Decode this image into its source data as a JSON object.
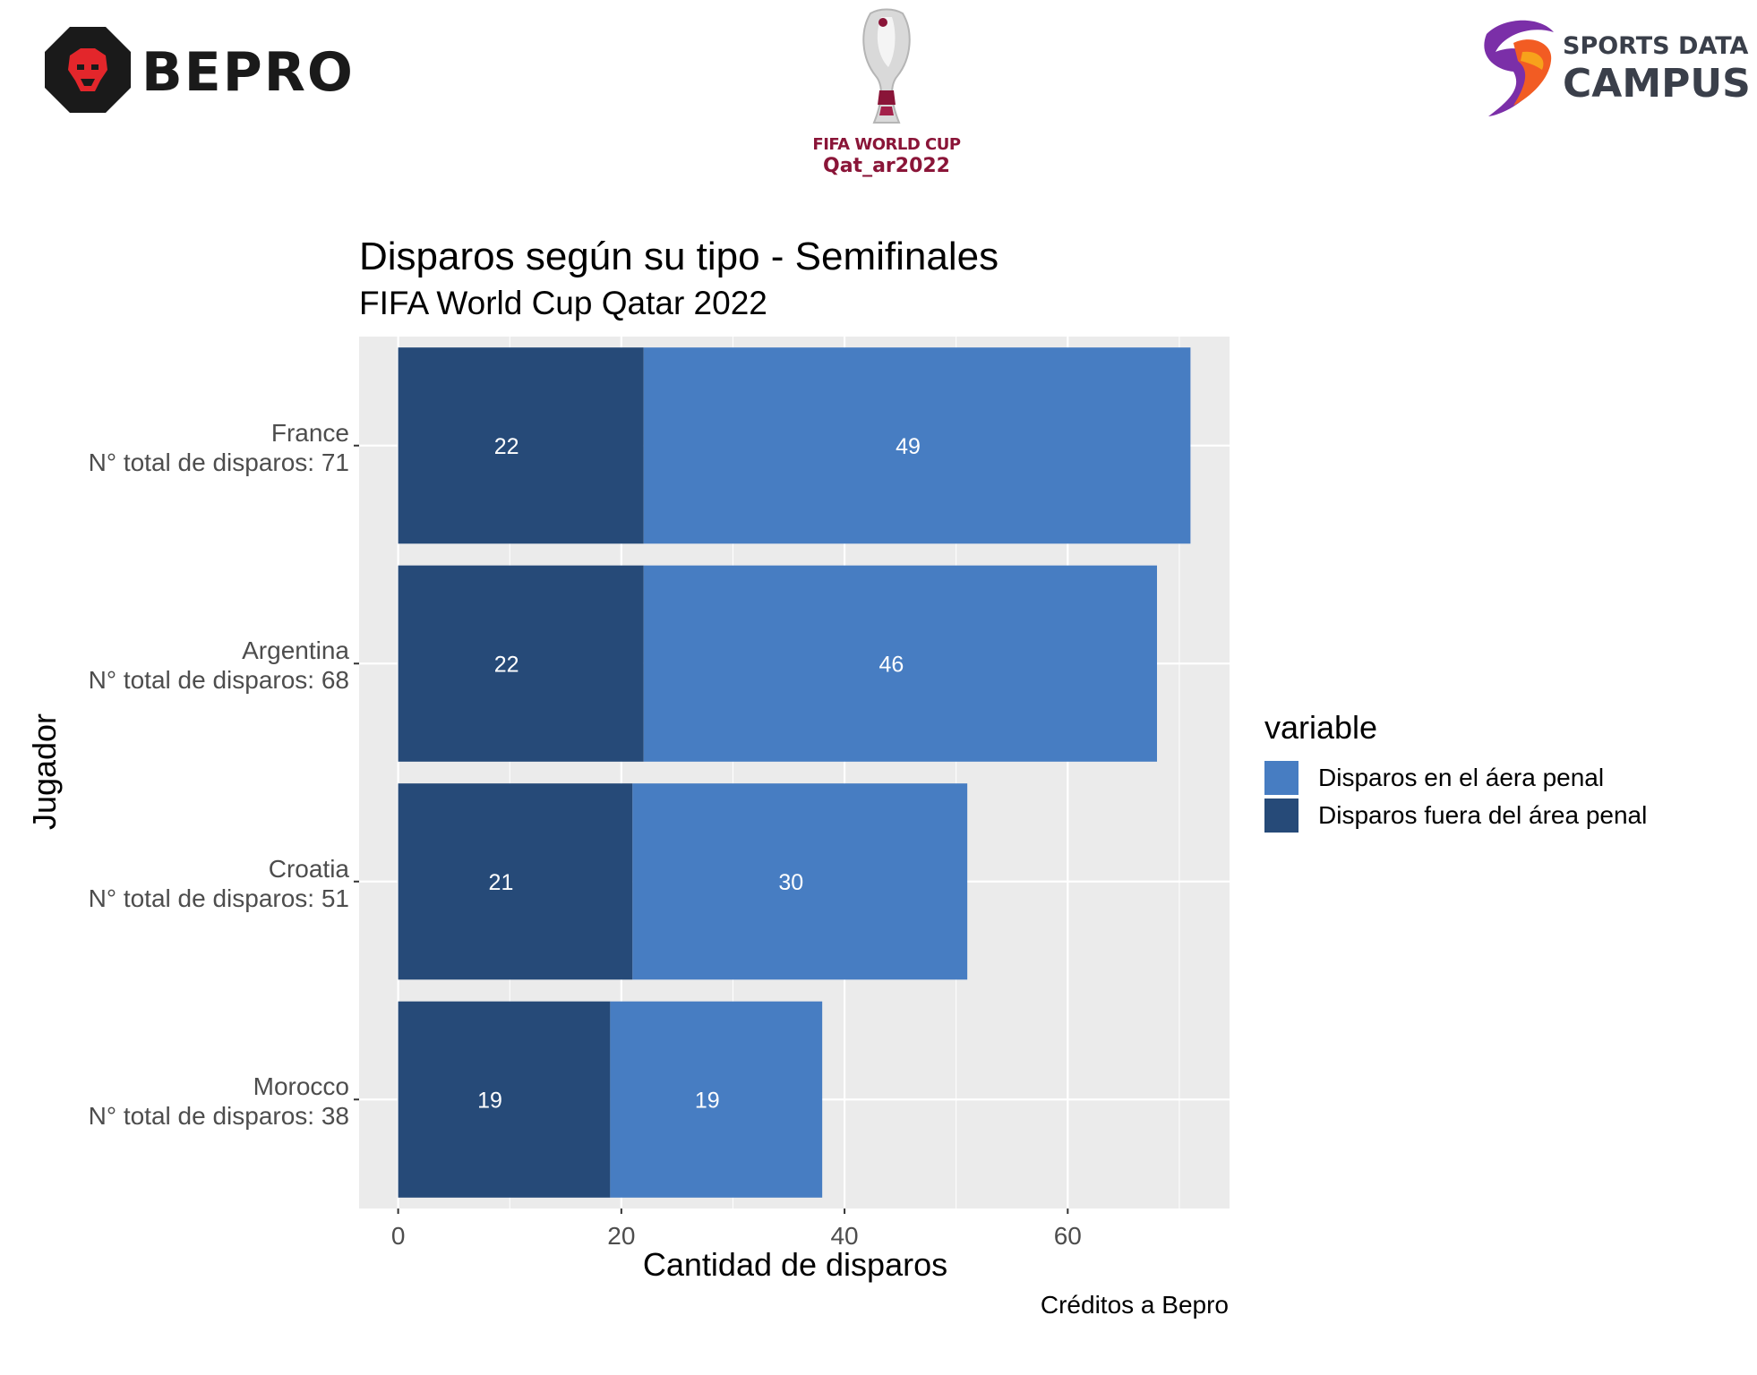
{
  "logos": {
    "left": {
      "icon": "lion-octagon-icon",
      "text": "BEPRO"
    },
    "center": {
      "icon": "world-cup-trophy-icon",
      "line1": "FIFA WORLD CUP",
      "line2": "Qat_ar2022"
    },
    "right": {
      "icon": "sports-data-campus-swoosh-icon",
      "line1": "SPORTS DATA",
      "line2": "CAMPUS"
    }
  },
  "colors": {
    "inside_area": "#477dc2",
    "outside_area": "#264a78",
    "panel_bg": "#ebebeb",
    "grid": "#ffffff",
    "wc_maroon": "#8a1538"
  },
  "chart_data": {
    "type": "bar",
    "orientation": "horizontal",
    "stacked": true,
    "title": "Disparos según su tipo - Semifinales",
    "subtitle": "FIFA World Cup Qatar 2022",
    "xlabel": "Cantidad de disparos",
    "ylabel": "Jugador",
    "caption": "Créditos a Bepro",
    "xlim": [
      -3.5,
      74.5
    ],
    "xticks": [
      0,
      20,
      40,
      60
    ],
    "grid": true,
    "categories": [
      {
        "name": "France",
        "total_label": "N° total de disparos: 71"
      },
      {
        "name": "Argentina",
        "total_label": "N° total de disparos: 68"
      },
      {
        "name": "Croatia",
        "total_label": "N° total de disparos: 51"
      },
      {
        "name": "Morocco",
        "total_label": "N° total de disparos: 38"
      }
    ],
    "series": [
      {
        "name": "Disparos fuera del área penal",
        "color": "#264a78",
        "values": [
          22,
          22,
          21,
          19
        ]
      },
      {
        "name": "Disparos en el áera penal",
        "color": "#477dc2",
        "values": [
          49,
          46,
          30,
          19
        ]
      }
    ],
    "legend": {
      "title": "variable",
      "position": "right",
      "items": [
        {
          "label": "Disparos en el áera penal",
          "color": "#477dc2"
        },
        {
          "label": "Disparos fuera del área penal",
          "color": "#264a78"
        }
      ]
    }
  }
}
